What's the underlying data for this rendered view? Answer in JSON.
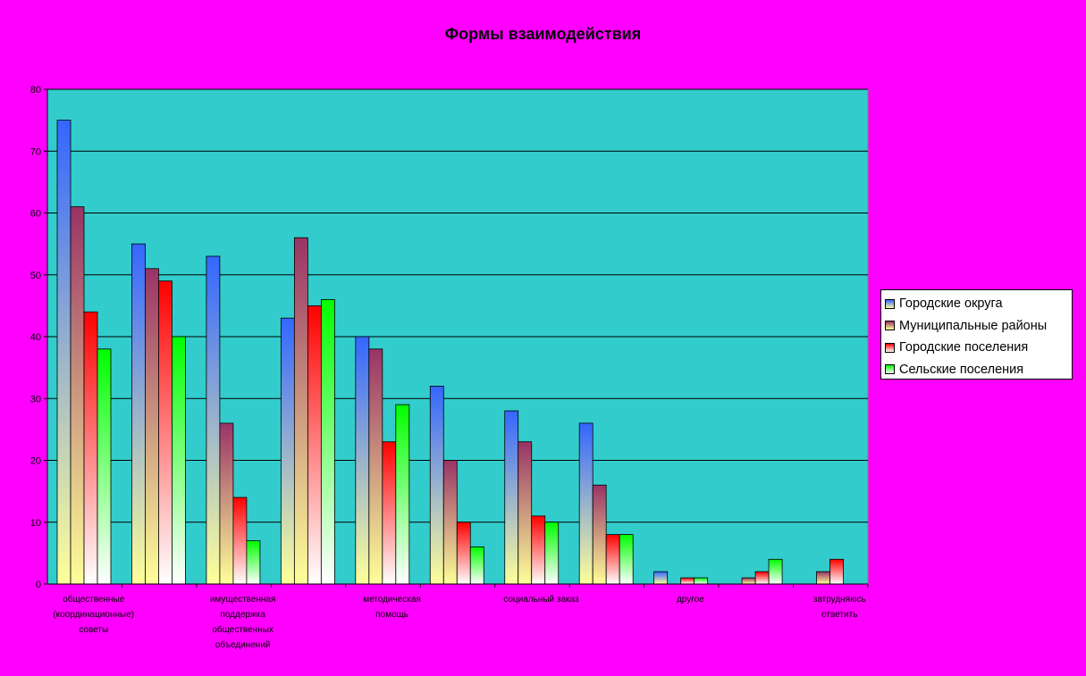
{
  "chart_data": {
    "type": "bar",
    "title": "Формы взаимодействия",
    "xlabel": "",
    "ylabel": "",
    "ylim": [
      0,
      80
    ],
    "yticks": [
      0,
      10,
      20,
      30,
      40,
      50,
      60,
      70,
      80
    ],
    "grid": true,
    "legend_position": "right",
    "background_color": "#FF00FF",
    "plot_area_color": "#33CCCC",
    "categories": [
      [
        "общественные",
        "(координационные)",
        "советы"
      ],
      [],
      [
        "имущественная",
        "поддержка",
        "общественных",
        "объединений"
      ],
      [],
      [
        "методическая",
        "помощь"
      ],
      [],
      [
        "социальный заказ"
      ],
      [],
      [
        "другое"
      ],
      [],
      [
        "затрудняюсь",
        "ответить"
      ]
    ],
    "series": [
      {
        "name": "Городские округа",
        "color": "#3366FF",
        "values": [
          75,
          55,
          53,
          43,
          40,
          32,
          28,
          26,
          2,
          0,
          0
        ]
      },
      {
        "name": "Муниципальные районы",
        "color": "#993366",
        "values": [
          61,
          51,
          26,
          56,
          38,
          20,
          23,
          16,
          0,
          1,
          2
        ]
      },
      {
        "name": "Городские поселения",
        "color": "#FF0000",
        "values": [
          44,
          49,
          14,
          45,
          23,
          10,
          11,
          8,
          1,
          2,
          4
        ]
      },
      {
        "name": "Сельские поселения",
        "color": "#00FF00",
        "values": [
          38,
          40,
          7,
          46,
          29,
          6,
          10,
          8,
          1,
          4,
          0
        ]
      }
    ]
  }
}
